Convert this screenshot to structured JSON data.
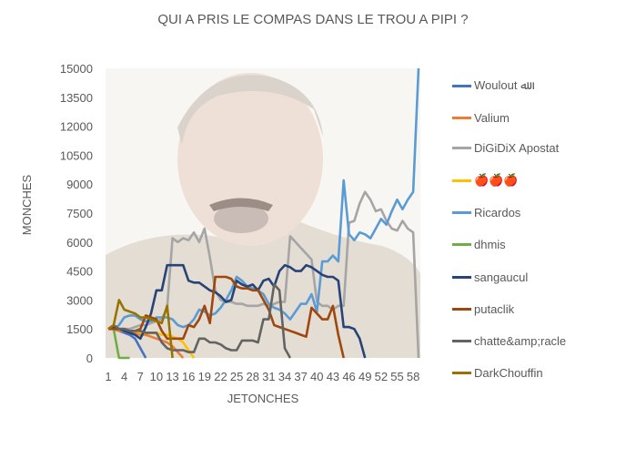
{
  "chart_data": {
    "type": "line",
    "title": "QUI A PRIS LE COMPAS DANS LE TROU A PIPI ?",
    "xlabel": "JETONCHES",
    "ylabel": "MONCHES",
    "ylim": [
      0,
      15000
    ],
    "yticks": [
      0,
      1500,
      3000,
      4500,
      6000,
      7500,
      9000,
      10500,
      12000,
      13500,
      15000
    ],
    "xticks": [
      1,
      4,
      7,
      10,
      13,
      16,
      19,
      22,
      25,
      28,
      31,
      34,
      37,
      40,
      43,
      46,
      49,
      52,
      55,
      58
    ],
    "x_count": 59,
    "grid": false,
    "legend_position": "right",
    "series": [
      {
        "name": "Woulout ﷲ",
        "color": "#4472C4",
        "values": [
          1500,
          1500,
          1400,
          1300,
          1200,
          1000,
          500,
          0
        ]
      },
      {
        "name": "Valium",
        "color": "#ED7D31",
        "values": [
          1500,
          1500,
          1400,
          1400,
          1300,
          1300,
          1200,
          1200,
          1100,
          1000,
          900,
          800,
          600,
          300,
          0
        ]
      },
      {
        "name": "DiGiDiX Apostat",
        "color": "#A5A5A5",
        "values": [
          1500,
          1600,
          1500,
          1500,
          1500,
          1600,
          1700,
          1700,
          1800,
          1900,
          2000,
          2600,
          6200,
          6000,
          6200,
          6100,
          6500,
          6000,
          6700,
          5200,
          3500,
          3000,
          2900,
          2900,
          2800,
          2800,
          2700,
          2700,
          2700,
          2800,
          2700,
          2800,
          2900,
          2900,
          6300,
          6000,
          5700,
          5400,
          5100,
          2900,
          2700,
          2700,
          2500,
          2700,
          2700,
          7000,
          7100,
          8000,
          8600,
          8200,
          7600,
          7700,
          7100,
          6700,
          6600,
          7100,
          6700,
          6500,
          0
        ]
      },
      {
        "name": "🍎🍎🍎",
        "color": "#FFC000",
        "values": [
          1500,
          1500,
          1500,
          1400,
          1400,
          1400,
          1300,
          1300,
          1300,
          1300,
          1200,
          1200,
          1100,
          1000,
          800,
          400,
          0
        ]
      },
      {
        "name": "Ricardos",
        "color": "#5B9BD5",
        "values": [
          1500,
          1500,
          1700,
          2100,
          2200,
          2200,
          2000,
          1900,
          1900,
          2100,
          2100,
          2100,
          2000,
          1700,
          1600,
          1700,
          2000,
          2500,
          2400,
          2200,
          2300,
          2600,
          3000,
          3500,
          4200,
          4000,
          3700,
          3600,
          3500,
          3300,
          2800,
          2600,
          2500,
          2300,
          2000,
          2400,
          2800,
          2800,
          3300,
          2400,
          5000,
          5000,
          5300,
          5000,
          9200,
          6400,
          6100,
          6500,
          6400,
          6200,
          6700,
          7200,
          6900,
          7600,
          8200,
          7700,
          8200,
          8600,
          15000
        ]
      },
      {
        "name": "dhmis",
        "color": "#70AD47",
        "values": [
          1500,
          1500,
          0,
          0,
          0
        ]
      },
      {
        "name": "sangaucul",
        "color": "#264478",
        "values": [
          1500,
          1600,
          1500,
          1400,
          1300,
          1200,
          1000,
          1600,
          2300,
          3500,
          3500,
          4800,
          4800,
          4800,
          4800,
          4000,
          3900,
          3900,
          3700,
          3500,
          3400,
          3200,
          2900,
          3000,
          4000,
          3800,
          3700,
          3800,
          3500,
          4000,
          4100,
          3700,
          4500,
          4800,
          4700,
          4500,
          4500,
          4800,
          4700,
          4500,
          4300,
          4200,
          4200,
          4000,
          1600,
          1600,
          1500,
          1000,
          0
        ]
      },
      {
        "name": "putaclik",
        "color": "#9E480E",
        "values": [
          1500,
          1500,
          1500,
          1500,
          1400,
          1400,
          1500,
          2200,
          2100,
          2000,
          1400,
          1000,
          1000,
          1000,
          1000,
          1700,
          1600,
          2000,
          2700,
          1800,
          4200,
          4200,
          4200,
          4100,
          3700,
          3600,
          3600,
          3500,
          3500,
          3000,
          2500,
          1700,
          1600,
          1500,
          1400,
          1300,
          1200,
          1100,
          2600,
          2300,
          2000,
          2000,
          2700,
          1200,
          0
        ]
      },
      {
        "name": "chatte&amp;racle",
        "color": "#636363",
        "values": [
          1500,
          1700,
          1500,
          1500,
          1400,
          1400,
          1400,
          1300,
          1300,
          1300,
          800,
          500,
          400,
          400,
          400,
          300,
          300,
          1000,
          1000,
          800,
          800,
          700,
          500,
          400,
          400,
          900,
          900,
          900,
          800,
          2000,
          2000,
          3800,
          3500,
          500,
          0
        ]
      },
      {
        "name": "DarkChouffin",
        "color": "#997300",
        "values": [
          1500,
          1700,
          3000,
          2500,
          2400,
          2300,
          2100,
          2100,
          2000,
          1900,
          1800,
          2700,
          0
        ]
      }
    ]
  }
}
